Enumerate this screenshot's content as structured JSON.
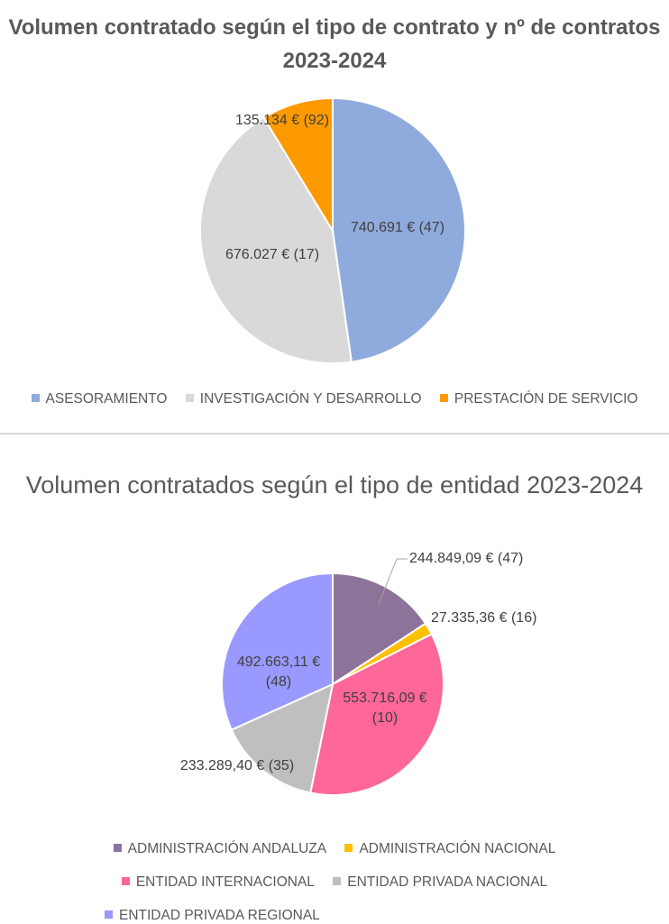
{
  "chart_data": [
    {
      "type": "pie",
      "title": "Volumen contratado según el tipo de contrato y nº de contratos 2023-2024",
      "slices": [
        {
          "name": "ASESORAMIENTO",
          "value": 740691,
          "count": 47,
          "label": "740.691 € (47)",
          "color": "#8faadc"
        },
        {
          "name": "INVESTIGACIÓN Y DESARROLLO",
          "value": 676027,
          "count": 17,
          "label": "676.027 € (17)",
          "color": "#d9d9d9"
        },
        {
          "name": "PRESTACIÓN DE SERVICIO",
          "value": 135134,
          "count": 92,
          "label": "135.134 € (92)",
          "color": "#ff9900"
        }
      ],
      "legend_position": "bottom"
    },
    {
      "type": "pie",
      "title": "Volumen contratados según el tipo de entidad 2023-2024",
      "slices": [
        {
          "name": "ADMINISTRACIÓN ANDALUZA",
          "value": 244849.09,
          "count": 47,
          "label": "244.849,09 € (47)",
          "color": "#8b7399"
        },
        {
          "name": "ADMINISTRACIÓN NACIONAL",
          "value": 27335.36,
          "count": 16,
          "label": "27.335,36 € (16)",
          "color": "#ffc000"
        },
        {
          "name": "ENTIDAD INTERNACIONAL",
          "value": 553716.09,
          "count": 10,
          "label": "553.716,09 €",
          "label2": "(10)",
          "color": "#ff6699"
        },
        {
          "name": "ENTIDAD PRIVADA NACIONAL",
          "value": 233289.4,
          "count": 35,
          "label": "233.289,40 € (35)",
          "color": "#bfbfbf"
        },
        {
          "name": "ENTIDAD PRIVADA REGIONAL",
          "value": 492663.11,
          "count": 48,
          "label": "492.663,11 €",
          "label2": "(48)",
          "color": "#9999ff"
        }
      ],
      "legend_position": "bottom"
    }
  ]
}
